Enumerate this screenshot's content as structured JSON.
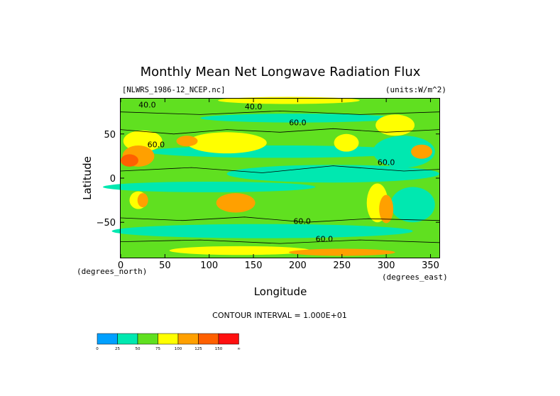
{
  "chart_data": {
    "type": "heatmap",
    "title": "Monthly Mean Net Longwave Radiation Flux",
    "file_label": "[NLWRS_1986-12_NCEP.nc]",
    "units_label": "(units:W/m^2)",
    "xlabel": "Longitude",
    "ylabel": "Latitude",
    "x_unit_note": "(degrees_north)",
    "y_unit_note": "(degrees_east)",
    "xlim": [
      0,
      360
    ],
    "ylim": [
      -90,
      90
    ],
    "x_ticks": [
      0,
      50,
      100,
      150,
      200,
      250,
      300,
      350
    ],
    "y_ticks": [
      50,
      0,
      -50
    ],
    "x_tick_labels": [
      "0",
      "50",
      "100",
      "150",
      "200",
      "250",
      "300",
      "350"
    ],
    "y_tick_labels": [
      "50",
      "0",
      "−50"
    ],
    "contour_interval_text": "CONTOUR INTERVAL = 1.000E+01",
    "contour_labels": [
      {
        "text": "40.0",
        "lon": 30,
        "lat": 80
      },
      {
        "text": "40.0",
        "lon": 150,
        "lat": 78
      },
      {
        "text": "60.0",
        "lon": 200,
        "lat": 60
      },
      {
        "text": "60.0",
        "lon": 300,
        "lat": 15
      },
      {
        "text": "60.0",
        "lon": 205,
        "lat": -52
      },
      {
        "text": "60.0",
        "lon": 40,
        "lat": 35
      },
      {
        "text": "60.0",
        "lon": 230,
        "lat": -72
      }
    ],
    "colorbar": {
      "boundaries": [
        "0",
        "25",
        "50",
        "75",
        "100",
        "125",
        "150",
        "∞"
      ],
      "colors": [
        "#00a0ff",
        "#00e8b0",
        "#60e020",
        "#ffff00",
        "#ffa000",
        "#ff6000",
        "#ff1010"
      ]
    },
    "grid": false
  }
}
